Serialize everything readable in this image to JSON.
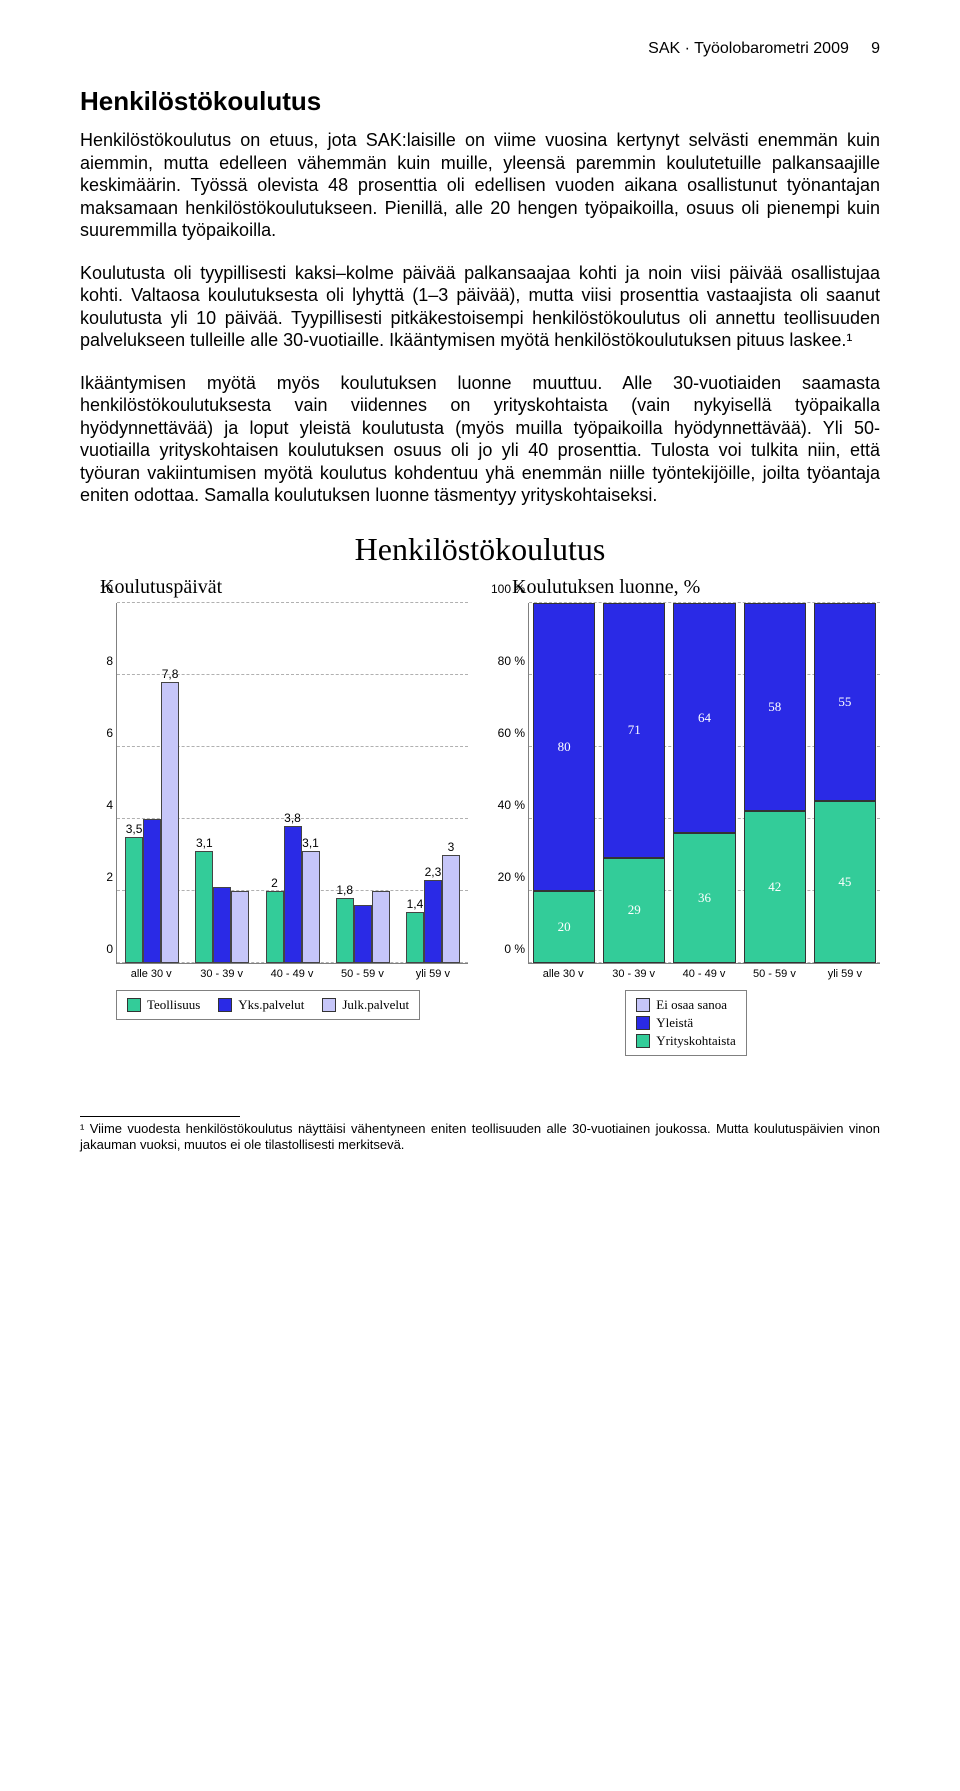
{
  "header": {
    "prefix": "SAK · Työolobarometri 2009",
    "page": "9"
  },
  "section": {
    "title": "Henkilöstökoulutus",
    "para1": "Henkilöstökoulutus on etuus, jota SAK:laisille on viime vuosina kertynyt selvästi enemmän kuin aiemmin, mutta edelleen vähemmän kuin muille, yleensä paremmin koulutetuille palkansaajille keskimäärin. Työssä olevista 48 prosenttia oli edellisen vuoden aikana osallistunut työnantajan maksamaan henkilöstökoulutukseen. Pienillä, alle 20 hengen työpaikoilla, osuus oli pienempi kuin suuremmilla työpaikoilla.",
    "para2": "Koulutusta oli tyypillisesti kaksi–kolme päivää palkansaajaa kohti ja noin viisi päivää osallistujaa kohti. Valtaosa koulutuksesta oli lyhyttä (1–3 päivää), mutta viisi prosenttia vastaajista oli saanut koulutusta yli 10 päivää. Tyypillisesti pitkäkestoisempi henkilöstökoulutus oli annettu teollisuuden palvelukseen tulleille alle 30-vuotiaille. Ikääntymisen myötä henkilöstökoulutuksen pituus laskee.¹",
    "para3": "Ikääntymisen myötä myös koulutuksen luonne muuttuu. Alle 30-vuotiaiden saamasta henkilöstökoulutuksesta vain viidennes on yrityskohtaista (vain nykyisellä työpaikalla hyödynnettävää) ja loput yleistä koulutusta (myös muilla työpaikoilla hyödynnettävää). Yli 50-vuotiailla yrityskohtaisen koulutuksen osuus oli jo yli 40 prosenttia. Tulosta voi tulkita niin, että työuran vakiintumisen myötä koulutus kohdentuu yhä enemmän niille työntekijöille, joilta työantaja eniten odottaa. Samalla koulutuksen luonne täsmentyy yrityskohtaiseksi."
  },
  "charts": {
    "title": "Henkilöstökoulutus",
    "left": {
      "subtitle": "Koulutuspäivät",
      "ymax": 10,
      "yticks": [
        0,
        2,
        4,
        6,
        8,
        10
      ],
      "categories": [
        "alle 30 v",
        "30 - 39 v",
        "40 - 49 v",
        "50 - 59 v",
        "yli 59 v"
      ],
      "series": [
        {
          "name": "Teollisuus",
          "color": "#33cc99",
          "values": [
            3.5,
            3.1,
            2.0,
            1.8,
            1.4
          ],
          "labels": [
            "3,5",
            "3,1",
            "2",
            "1,8",
            "1,4"
          ]
        },
        {
          "name": "Yks.palvelut",
          "color": "#2a2ae6",
          "values": [
            4.0,
            2.1,
            3.8,
            1.6,
            2.3
          ],
          "labels": [
            "",
            "",
            "3,8",
            "",
            "2,3"
          ]
        },
        {
          "name": "Julk.palvelut",
          "color": "#c6c6f9",
          "values": [
            7.8,
            2.0,
            3.1,
            2.0,
            3.0
          ],
          "labels": [
            "7,8",
            "",
            "3,1",
            "",
            "3"
          ]
        }
      ],
      "legend": [
        "Teollisuus",
        "Yks.palvelut",
        "Julk.palvelut"
      ],
      "legend_colors": [
        "#33cc99",
        "#2a2ae6",
        "#c6c6f9"
      ]
    },
    "right": {
      "subtitle": "Koulutuksen luonne, %",
      "ymax": 100,
      "yticks": [
        "0 %",
        "20 %",
        "40 %",
        "60 %",
        "80 %",
        "100 %"
      ],
      "categories": [
        "alle 30 v",
        "30 - 39 v",
        "40 - 49 v",
        "50 - 59 v",
        "yli 59 v"
      ],
      "stack_colors": {
        "yrityskohtaista": "#33cc99",
        "yleista": "#2a2ae6",
        "eiosaa": "#c6c6f9"
      },
      "rows": [
        {
          "yritys": 20,
          "yleista": 80,
          "eiosaa": 0,
          "label1": "20",
          "label2": "80"
        },
        {
          "yritys": 29,
          "yleista": 71,
          "eiosaa": 0,
          "label1": "29",
          "label2": "71"
        },
        {
          "yritys": 36,
          "yleista": 64,
          "eiosaa": 0,
          "label1": "36",
          "label2": "64"
        },
        {
          "yritys": 42,
          "yleista": 58,
          "eiosaa": 0,
          "label1": "42",
          "label2": "58"
        },
        {
          "yritys": 45,
          "yleista": 55,
          "eiosaa": 0,
          "label1": "45",
          "label2": "55"
        }
      ],
      "legend": [
        "Ei osaa sanoa",
        "Yleistä",
        "Yrityskohtaista"
      ],
      "legend_colors": [
        "#c6c6f9",
        "#2a2ae6",
        "#33cc99"
      ]
    }
  },
  "footnote": "¹ Viime vuodesta henkilöstökoulutus näyttäisi vähentyneen eniten teollisuuden alle 30-vuotiainen joukossa. Mutta koulutuspäivien vinon jakauman vuoksi, muutos ei ole tilastollisesti merkitsevä."
}
